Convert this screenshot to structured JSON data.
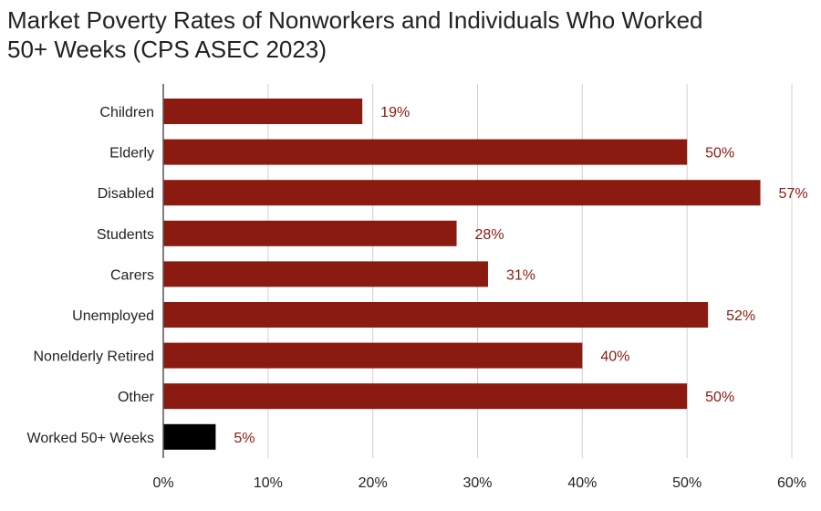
{
  "chart_data": {
    "type": "bar",
    "orientation": "horizontal",
    "title_lines": [
      "Market Poverty Rates of Nonworkers and Individuals Who Worked",
      "50+ Weeks (CPS ASEC 2023)"
    ],
    "categories": [
      "Children",
      "Elderly",
      "Disabled",
      "Students",
      "Carers",
      "Unemployed",
      "Nonelderly Retired",
      "Other",
      "Worked 50+ Weeks"
    ],
    "values": [
      0.19,
      0.5,
      0.57,
      0.28,
      0.31,
      0.52,
      0.4,
      0.5,
      0.05
    ],
    "data_labels": [
      "19%",
      "50%",
      "57%",
      "28%",
      "31%",
      "52%",
      "40%",
      "50%",
      "5%"
    ],
    "colors": [
      "#8B1A10",
      "#8B1A10",
      "#8B1A10",
      "#8B1A10",
      "#8B1A10",
      "#8B1A10",
      "#8B1A10",
      "#8B1A10",
      "#000000"
    ],
    "xlim": [
      0,
      0.6
    ],
    "xticks": [
      0,
      0.1,
      0.2,
      0.3,
      0.4,
      0.5,
      0.6
    ],
    "xtick_labels": [
      "0%",
      "10%",
      "20%",
      "30%",
      "40%",
      "50%",
      "60%"
    ],
    "grid": "vertical",
    "legend": "none",
    "xlabel": "",
    "ylabel": ""
  }
}
